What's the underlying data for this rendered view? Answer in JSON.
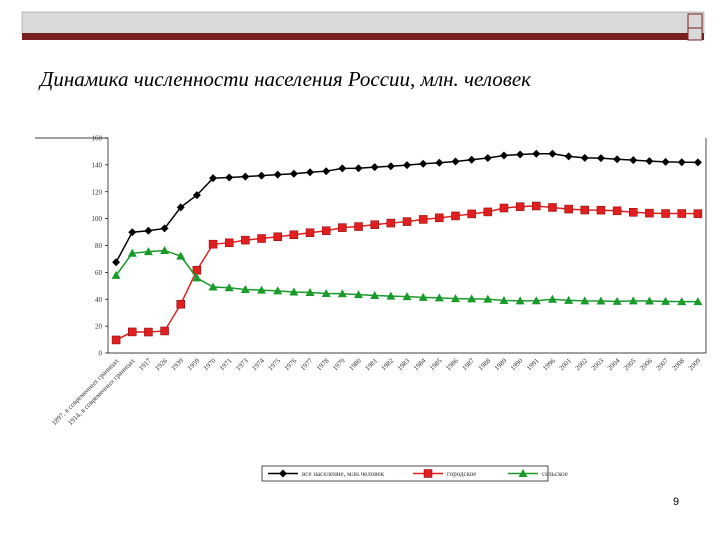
{
  "title": "Динамика численности населения России, млн. человек",
  "page_number": "9",
  "chart_data": {
    "type": "line",
    "categories": [
      "1897, в современных границах",
      "1914, в современных границах",
      "1917",
      "1926",
      "1939",
      "1959",
      "1970",
      "1971",
      "1973",
      "1974",
      "1975",
      "1976",
      "1977",
      "1978",
      "1979",
      "1980",
      "1981",
      "1982",
      "1983",
      "1984",
      "1985",
      "1986",
      "1987",
      "1988",
      "1989",
      "1990",
      "1991",
      "1996",
      "2001",
      "2002",
      "2003",
      "2004",
      "2005",
      "2006",
      "2007",
      "2008",
      "2009"
    ],
    "series": [
      {
        "name": "все население, млн.человек",
        "color": "#000000",
        "marker": "diamond",
        "values": [
          67.5,
          89.9,
          91.0,
          92.7,
          108.4,
          117.5,
          130.1,
          130.6,
          131.3,
          132.0,
          132.7,
          133.4,
          134.5,
          135.3,
          137.4,
          137.5,
          138.3,
          139.0,
          139.8,
          140.8,
          141.6,
          142.5,
          143.8,
          145.1,
          147.0,
          147.7,
          148.3,
          148.3,
          146.3,
          145.2,
          145.0,
          144.2,
          143.5,
          142.8,
          142.2,
          142.0,
          141.9
        ]
      },
      {
        "name": "городское",
        "color": "#e02020",
        "marker": "square",
        "values": [
          9.7,
          15.7,
          15.6,
          16.4,
          36.3,
          61.6,
          81.0,
          82.0,
          84.0,
          85.2,
          86.5,
          88.0,
          89.5,
          91.0,
          93.3,
          94.1,
          95.5,
          96.7,
          97.8,
          99.4,
          100.6,
          102.0,
          103.5,
          105.0,
          107.9,
          108.9,
          109.4,
          108.3,
          107.1,
          106.4,
          106.3,
          105.8,
          104.7,
          104.1,
          103.8,
          103.8,
          103.7
        ]
      },
      {
        "name": "сельское",
        "color": "#1a9a2a",
        "marker": "triangle",
        "values": [
          57.8,
          74.2,
          75.4,
          76.3,
          72.1,
          55.9,
          49.1,
          48.6,
          47.3,
          46.8,
          46.2,
          45.4,
          45.0,
          44.3,
          44.1,
          43.4,
          42.8,
          42.3,
          42.0,
          41.4,
          41.0,
          40.5,
          40.3,
          40.1,
          39.1,
          38.8,
          38.9,
          40.0,
          39.2,
          38.8,
          38.7,
          38.4,
          38.8,
          38.7,
          38.4,
          38.2,
          38.2
        ]
      }
    ],
    "ylim": [
      0,
      160
    ],
    "yticks": [
      0,
      20,
      40,
      60,
      80,
      100,
      120,
      140,
      160
    ],
    "grid": false,
    "legend": "bottom"
  }
}
